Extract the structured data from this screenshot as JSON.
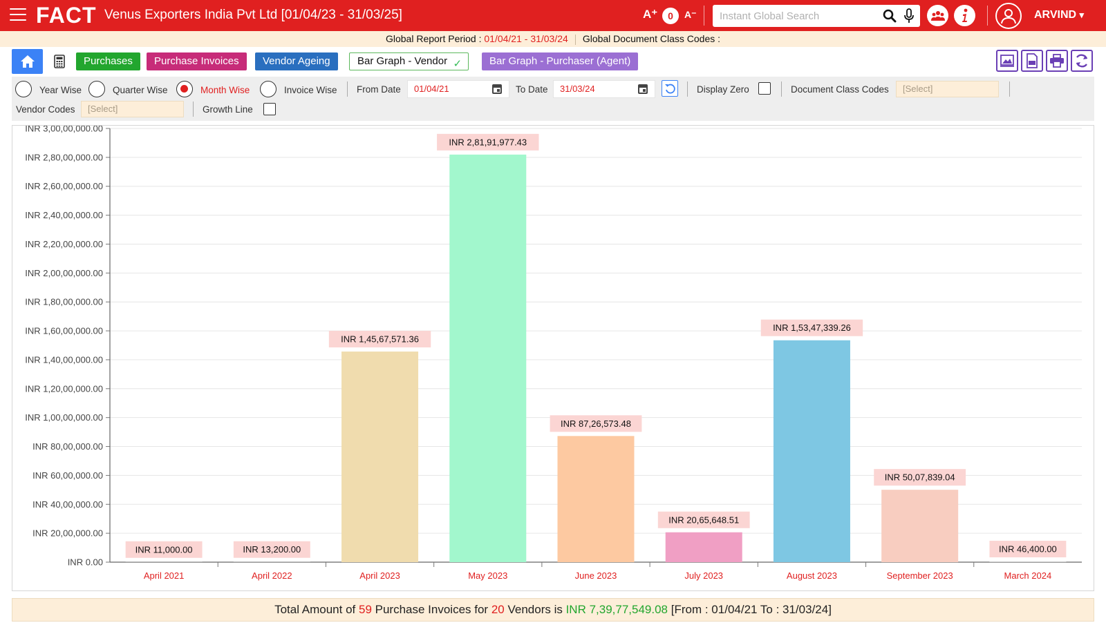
{
  "header": {
    "logo": "FACT",
    "company": "Venus Exporters India Pvt Ltd [01/04/23 - 31/03/25]",
    "font_increase": "A⁺",
    "font_decrease": "A⁻",
    "font_level": "0",
    "search_placeholder": "Instant Global Search",
    "user_name": "ARVIND",
    "user_caret": "▾"
  },
  "period_bar": {
    "period_label": "Global Report Period : ",
    "period_value": "01/04/21 - 31/03/24",
    "doc_class_label": "Global Document Class Codes :"
  },
  "tabs": {
    "purchases": "Purchases",
    "purchase_invoices": "Purchase Invoices",
    "vendor_ageing": "Vendor Ageing",
    "bar_graph_vendor": "Bar Graph - Vendor",
    "bar_graph_purchaser": "Bar Graph - Purchaser (Agent)"
  },
  "filters": {
    "year_wise": "Year Wise",
    "quarter_wise": "Quarter Wise",
    "month_wise": "Month Wise",
    "invoice_wise": "Invoice Wise",
    "selected_grouping": "Month Wise",
    "from_date_label": "From Date",
    "from_date_value": "01/04/21",
    "to_date_label": "To Date",
    "to_date_value": "31/03/24",
    "display_zero_label": "Display Zero",
    "display_zero_checked": false,
    "doc_class_label": "Document Class Codes",
    "doc_class_placeholder": "[Select]",
    "vendor_codes_label": "Vendor Codes",
    "vendor_codes_placeholder": "[Select]",
    "growth_line_label": "Growth Line",
    "growth_line_checked": false
  },
  "chart_data": {
    "type": "bar",
    "title": "",
    "xlabel": "",
    "ylabel": "",
    "ylim": [
      0,
      30000000
    ],
    "grid": true,
    "yticks": [
      "INR 0.00",
      "INR 20,00,000.00",
      "INR 40,00,000.00",
      "INR 60,00,000.00",
      "INR 80,00,000.00",
      "INR 1,00,00,000.00",
      "INR 1,20,00,000.00",
      "INR 1,40,00,000.00",
      "INR 1,60,00,000.00",
      "INR 1,80,00,000.00",
      "INR 2,00,00,000.00",
      "INR 2,20,00,000.00",
      "INR 2,40,00,000.00",
      "INR 2,60,00,000.00",
      "INR 2,80,00,000.00",
      "INR 3,00,00,000.00"
    ],
    "categories": [
      "April 2021",
      "April 2022",
      "April 2023",
      "May 2023",
      "June 2023",
      "July 2023",
      "August 2023",
      "September 2023",
      "March 2024"
    ],
    "values": [
      11000.0,
      13200.0,
      14567571.36,
      28191977.43,
      8726573.48,
      2065648.51,
      15347339.26,
      5007839.04,
      46400.0
    ],
    "data_labels": [
      "INR 11,000.00",
      "INR 13,200.00",
      "INR 1,45,67,571.36",
      "INR 2,81,91,977.43",
      "INR 87,26,573.48",
      "INR 20,65,648.51",
      "INR 1,53,47,339.26",
      "INR 50,07,839.04",
      "INR 46,400.00"
    ],
    "colors": [
      "#c9c9c9",
      "#c9c9c9",
      "#f0dcae",
      "#a2f7cd",
      "#fdc9a1",
      "#f09fc4",
      "#7ec7e3",
      "#f8cdc0",
      "#c9c9c9"
    ],
    "label_bg": "#fbd5d3"
  },
  "footer": {
    "prefix": "Total Amount of ",
    "invoice_count": "59",
    "mid1": " Purchase Invoices for ",
    "vendor_count": "20",
    "mid2": " Vendors is ",
    "total": "INR 7,39,77,549.08",
    "suffix": " [From : 01/04/21 To : 31/03/24]"
  },
  "colors": {
    "brand_red": "#e02020",
    "accent_blue": "#3b82f6",
    "toolbar_purple": "#6a3fb5",
    "period_bg": "#fdeed9"
  }
}
